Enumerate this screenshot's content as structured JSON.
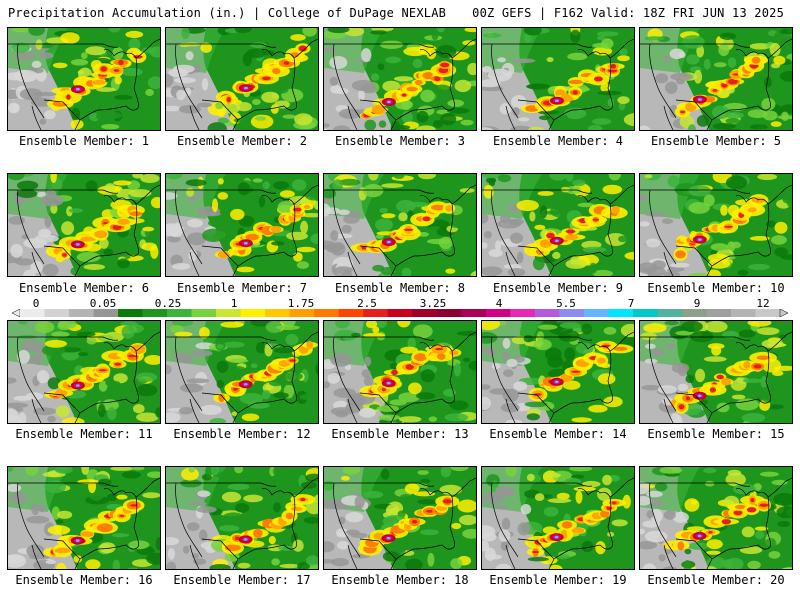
{
  "header": {
    "left": "Precipitation Accumulation (in.) | College of DuPage NEXLAB",
    "right": "00Z GEFS | F162 Valid: 18Z FRI JUN 13 2025"
  },
  "members": [
    {
      "label": "Ensemble Member: 1"
    },
    {
      "label": "Ensemble Member: 2"
    },
    {
      "label": "Ensemble Member: 3"
    },
    {
      "label": "Ensemble Member: 4"
    },
    {
      "label": "Ensemble Member: 5"
    },
    {
      "label": "Ensemble Member: 6"
    },
    {
      "label": "Ensemble Member: 7"
    },
    {
      "label": "Ensemble Member: 8"
    },
    {
      "label": "Ensemble Member: 9"
    },
    {
      "label": "Ensemble Member: 10"
    },
    {
      "label": "Ensemble Member: 11"
    },
    {
      "label": "Ensemble Member: 12"
    },
    {
      "label": "Ensemble Member: 13"
    },
    {
      "label": "Ensemble Member: 14"
    },
    {
      "label": "Ensemble Member: 15"
    },
    {
      "label": "Ensemble Member: 16"
    },
    {
      "label": "Ensemble Member: 17"
    },
    {
      "label": "Ensemble Member: 18"
    },
    {
      "label": "Ensemble Member: 19"
    },
    {
      "label": "Ensemble Member: 20"
    }
  ],
  "colorbar": {
    "labels": [
      "0",
      "0.05",
      "0.25",
      "1",
      "1.75",
      "2.5",
      "3.25",
      "4",
      "5.5",
      "7",
      "9",
      "12"
    ],
    "colors": [
      "#ececec",
      "#d2d2d2",
      "#b4b4b4",
      "#969696",
      "#0a7a0a",
      "#1e961e",
      "#3cb43c",
      "#78d23c",
      "#c8e632",
      "#fff000",
      "#ffc800",
      "#ffa000",
      "#ff7800",
      "#ff4600",
      "#e61e1e",
      "#c8001e",
      "#a00028",
      "#8c0032",
      "#aa005a",
      "#d20082",
      "#e628b4",
      "#b45adc",
      "#8c8cf0",
      "#64b4ff",
      "#00e6ff",
      "#00c8c8",
      "#50b4a0",
      "#8ca08c",
      "#a0a0a0",
      "#b4b4b4",
      "#c8c8c8"
    ]
  }
}
